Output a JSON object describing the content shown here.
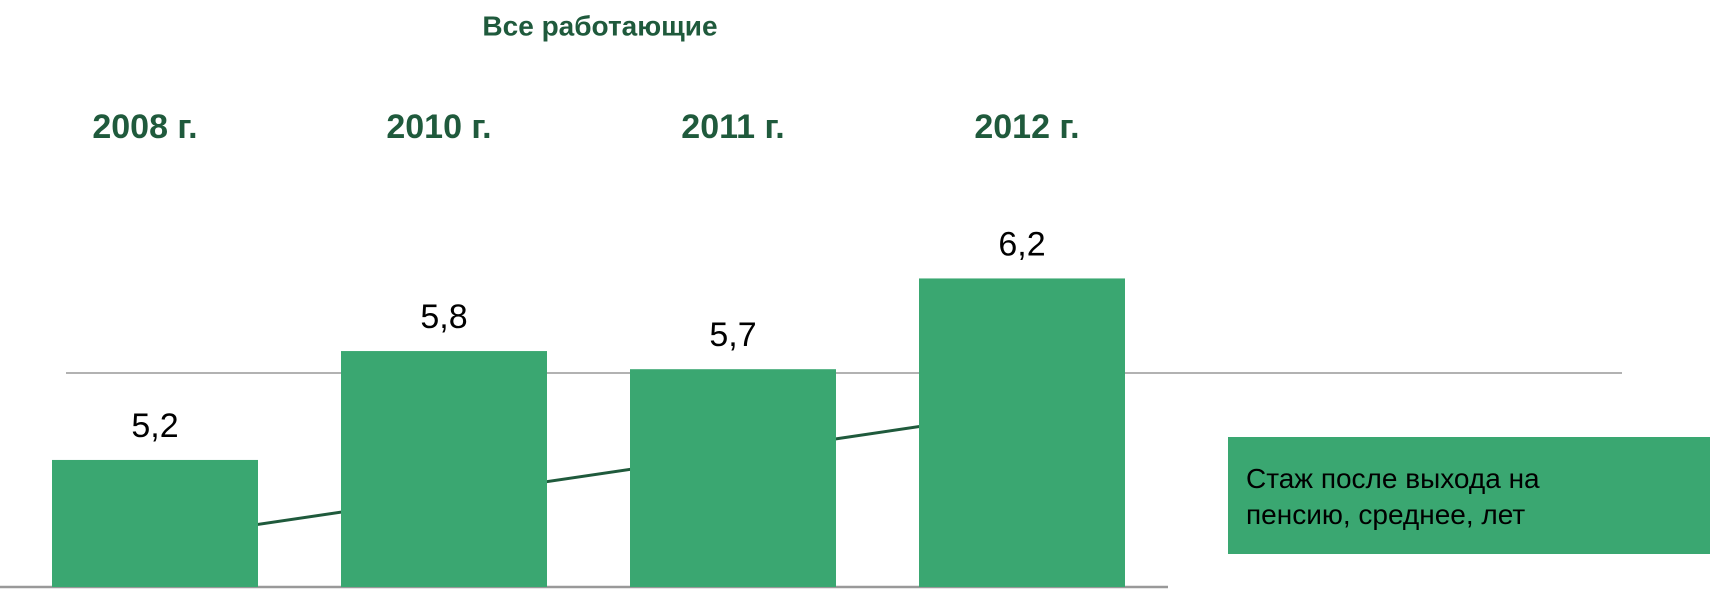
{
  "chart_data": {
    "type": "bar",
    "title": "Все работающие",
    "categories": [
      "2008 г.",
      "2010 г.",
      "2011 г.",
      "2012 г."
    ],
    "series": [
      {
        "name": "Стаж после выхода на пенсию, среднее, лет",
        "color": "#3aa771",
        "values": [
          5.2,
          5.8,
          5.7,
          6.2
        ],
        "value_labels": [
          "5,2",
          "5,8",
          "5,7",
          "6,2"
        ]
      }
    ],
    "ylim": [
      4.5,
      6.5
    ]
  }
}
